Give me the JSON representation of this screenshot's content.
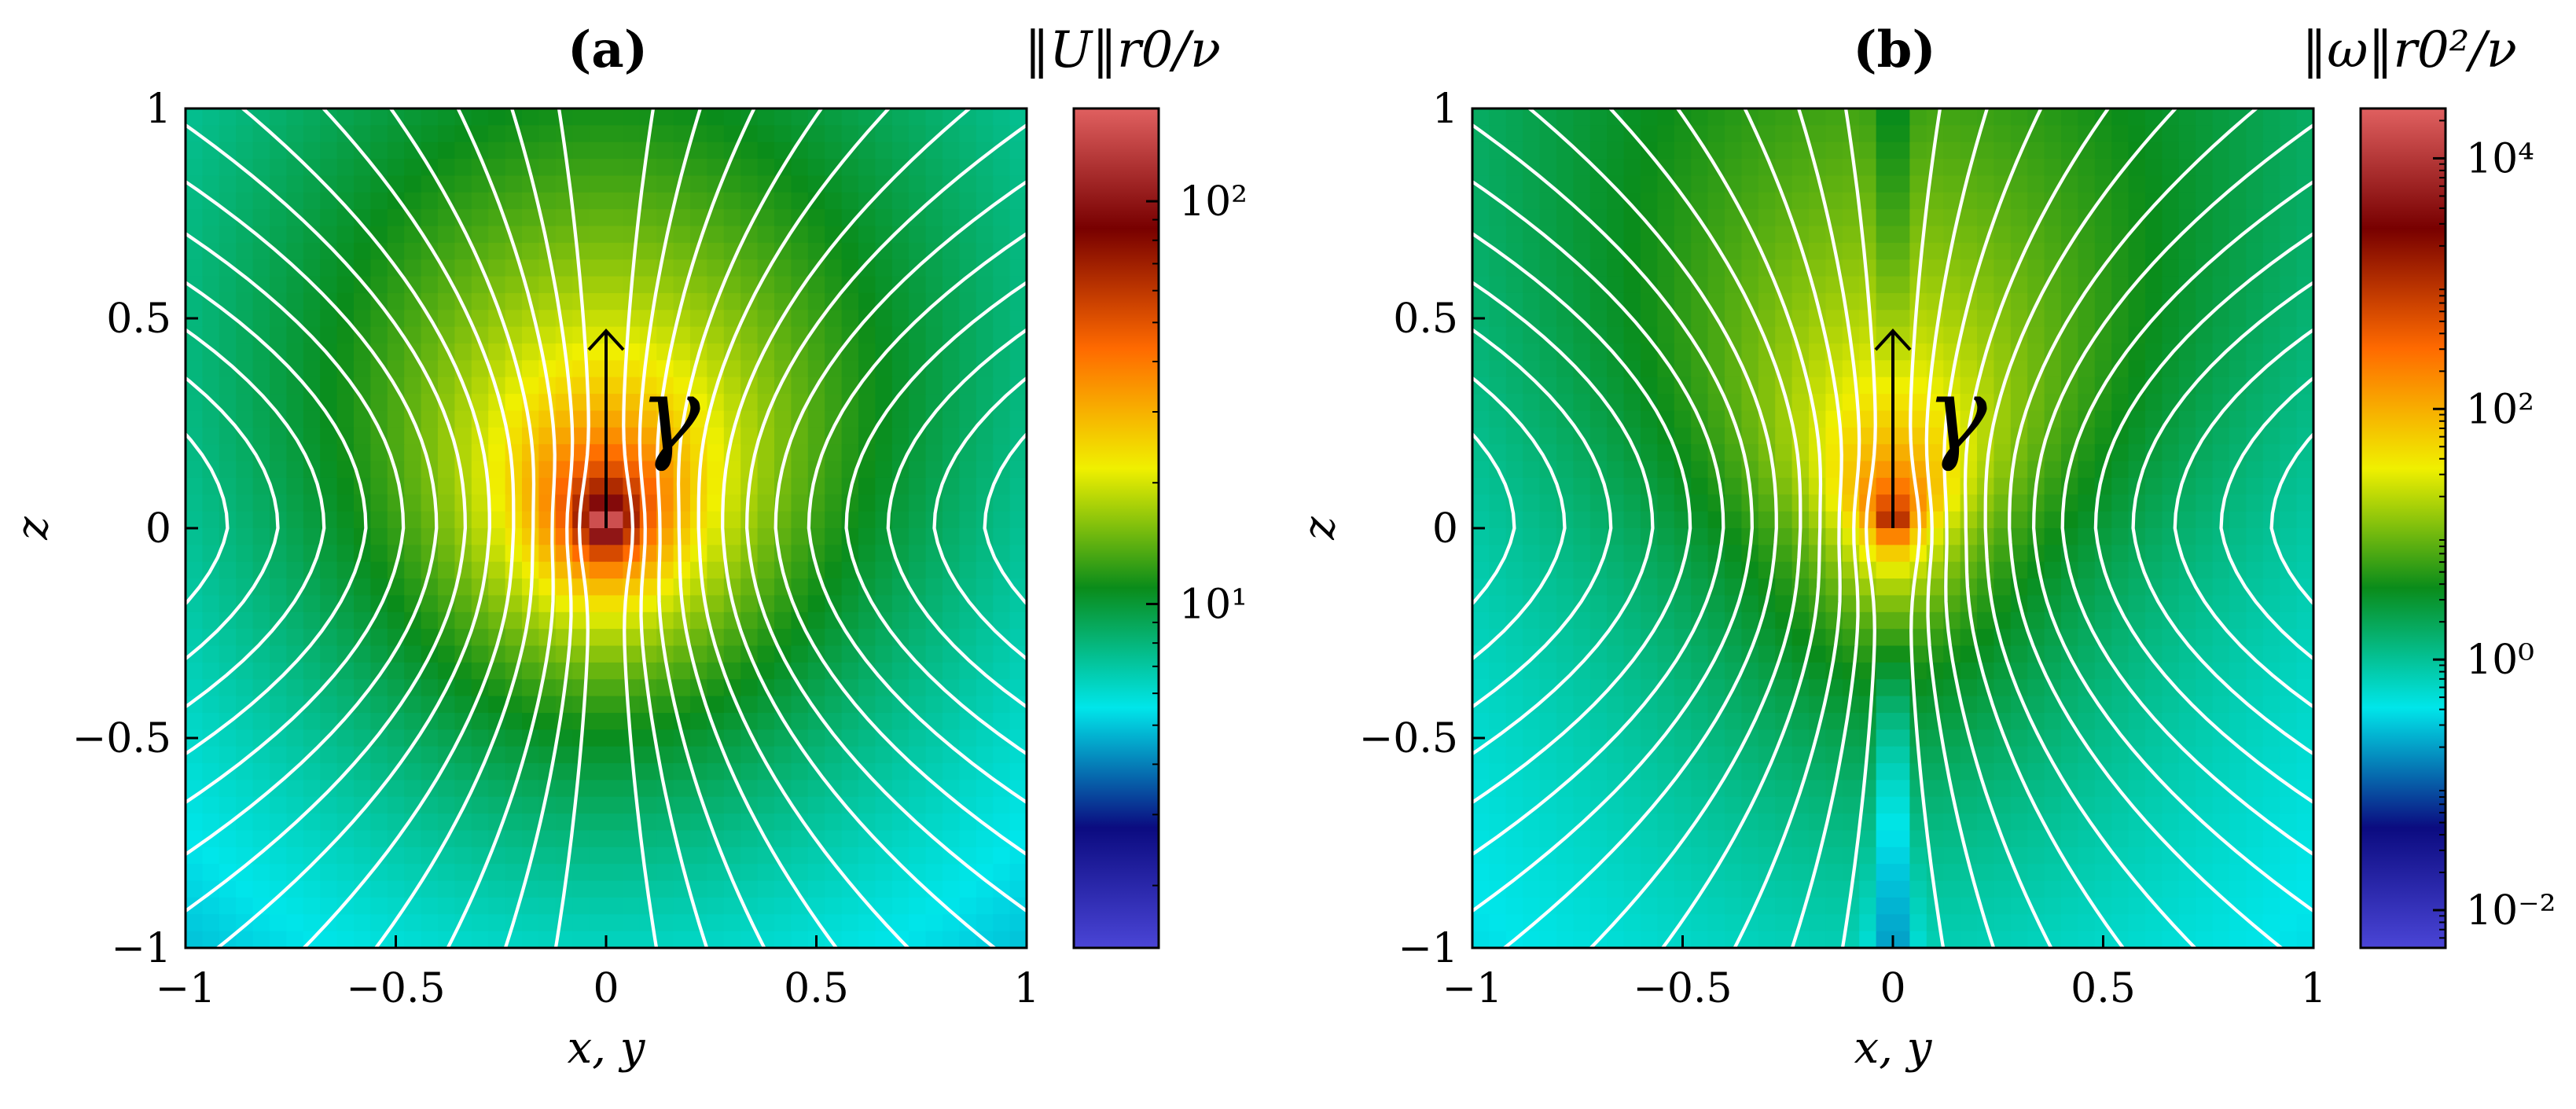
{
  "chart_data": [
    {
      "type": "heatmap",
      "panel_label": "(a)",
      "colorbar_label": "‖U‖r0/ν",
      "colorbar": {
        "scale": "log",
        "range": [
          1.4,
          170
        ],
        "ticks": [
          {
            "value": 10,
            "label": "10¹"
          },
          {
            "value": 100,
            "label": "10²"
          }
        ]
      },
      "xlabel": "x, y",
      "ylabel": "z",
      "xlim": [
        -1,
        1
      ],
      "ylim": [
        -1,
        1
      ],
      "xticks": [
        -1,
        -0.5,
        0,
        0.5,
        1
      ],
      "yticks": [
        -1,
        -0.5,
        0,
        0.5,
        1
      ],
      "xtick_labels": [
        "−1",
        "−0.5",
        "0",
        "0.5",
        "1"
      ],
      "ytick_labels": [
        "−1",
        "−0.5",
        "0",
        "0.5",
        "1"
      ],
      "overlay": "white streamlines",
      "arrow": {
        "from": [
          0,
          0
        ],
        "to": [
          0,
          0.47
        ],
        "label": "γ"
      }
    },
    {
      "type": "heatmap",
      "panel_label": "(b)",
      "colorbar_label": "‖ω‖r0²/ν",
      "colorbar": {
        "scale": "log",
        "range": [
          0.005,
          25000
        ],
        "ticks": [
          {
            "value": 0.01,
            "label": "10⁻²"
          },
          {
            "value": 1,
            "label": "10⁰"
          },
          {
            "value": 100,
            "label": "10²"
          },
          {
            "value": 10000,
            "label": "10⁴"
          }
        ]
      },
      "xlabel": "x, y",
      "ylabel": "z",
      "xlim": [
        -1,
        1
      ],
      "ylim": [
        -1,
        1
      ],
      "xticks": [
        -1,
        -0.5,
        0,
        0.5,
        1
      ],
      "yticks": [
        -1,
        -0.5,
        0,
        0.5,
        1
      ],
      "xtick_labels": [
        "−1",
        "−0.5",
        "0",
        "0.5",
        "1"
      ],
      "ytick_labels": [
        "−1",
        "−0.5",
        "0",
        "0.5",
        "1"
      ],
      "overlay": "white streamlines",
      "arrow": {
        "from": [
          0,
          0
        ],
        "to": [
          0,
          0.47
        ],
        "label": "γ"
      }
    }
  ],
  "colormap_stops": [
    "#4a45d6",
    "#0b0b80",
    "#00e6ea",
    "#0a8c1a",
    "#f0f000",
    "#ff6a00",
    "#780000",
    "#e06060"
  ],
  "streamline_color": "#ffffff"
}
